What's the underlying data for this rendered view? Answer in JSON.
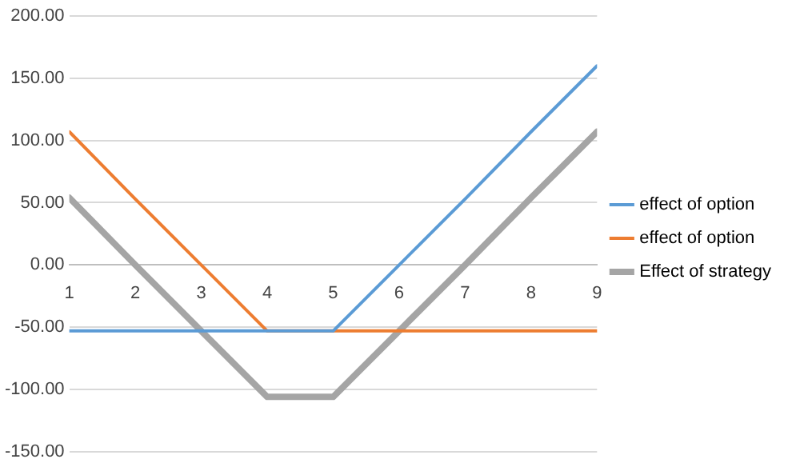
{
  "chart_data": {
    "type": "line",
    "x": [
      1,
      2,
      3,
      4,
      5,
      6,
      7,
      8,
      9
    ],
    "series": [
      {
        "name": "effect of option",
        "color": "#5b9bd5",
        "values": [
          -53,
          -53,
          -53,
          -53,
          -53,
          0,
          53,
          107,
          160
        ]
      },
      {
        "name": "effect of option",
        "color": "#ed7d31",
        "values": [
          107,
          53,
          0,
          -53,
          -53,
          -53,
          -53,
          -53,
          -53
        ]
      },
      {
        "name": "Effect of strategy",
        "color": "#a5a5a5",
        "values": [
          54,
          0,
          -53,
          -106,
          -106,
          -53,
          0,
          54,
          107
        ]
      }
    ],
    "xlim": [
      1,
      9
    ],
    "xticks": [
      1,
      2,
      3,
      4,
      5,
      6,
      7,
      8,
      9
    ],
    "ylim": [
      -150,
      200
    ],
    "yticks": [
      {
        "value": -150,
        "label": "-150.00"
      },
      {
        "value": -100,
        "label": "-100.00"
      },
      {
        "value": -50,
        "label": "-50.00"
      },
      {
        "value": 0,
        "label": "0.00"
      },
      {
        "value": 50,
        "label": "50.00"
      },
      {
        "value": 100,
        "label": "100.00"
      },
      {
        "value": 150,
        "label": "150.00"
      },
      {
        "value": 200,
        "label": "200.00"
      }
    ],
    "grid": "y",
    "legend": "right",
    "marker": "none",
    "line_style": "solid"
  }
}
